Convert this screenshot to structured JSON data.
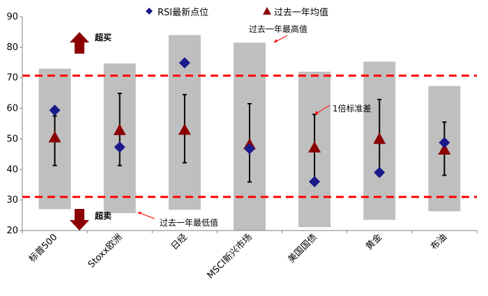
{
  "chart_data": {
    "type": "range-marker",
    "categories": [
      "标普500",
      "Stoxx欧洲",
      "日经",
      "MSCI新兴市场",
      "美国国债",
      "黄金",
      "布油"
    ],
    "ylim": [
      20,
      90
    ],
    "yticks": [
      20,
      30,
      40,
      50,
      60,
      70,
      80,
      90
    ],
    "range_high": [
      73,
      74.7,
      84,
      81.5,
      72,
      75.3,
      67.3
    ],
    "range_low": [
      27,
      25.7,
      26.8,
      19.8,
      21.1,
      23.5,
      26.3
    ],
    "rsi_latest": [
      59.4,
      47.3,
      74.9,
      46.8,
      36,
      39,
      48.8
    ],
    "mean_1y": [
      50.5,
      52.9,
      53,
      48.2,
      47.2,
      50,
      46.5
    ],
    "sd_upper": [
      57.5,
      64.9,
      64.5,
      61.5,
      58,
      62.9,
      55.5
    ],
    "sd_lower": [
      41.3,
      41.3,
      42.2,
      35.9,
      35.9,
      39.2,
      38.1
    ],
    "overbought_line": 70.7,
    "oversold_line": 31,
    "legend": [
      {
        "name": "RSI最新点位",
        "marker": "diamond",
        "color": "#1a1a8c"
      },
      {
        "name": "过去一年均值",
        "marker": "triangle",
        "color": "#8b0000"
      }
    ],
    "annotations": {
      "overbought": "超买",
      "oversold": "超卖",
      "high": "过去一年最高值",
      "low": "过去一年最低值",
      "sd": "1倍标准差"
    },
    "colors": {
      "bar": "#bfbfbf",
      "diamond": "#1a1a8c",
      "triangle": "#8b0000",
      "dash": "#ff0000",
      "arrow": "#8b0000",
      "error": "#000000"
    }
  }
}
